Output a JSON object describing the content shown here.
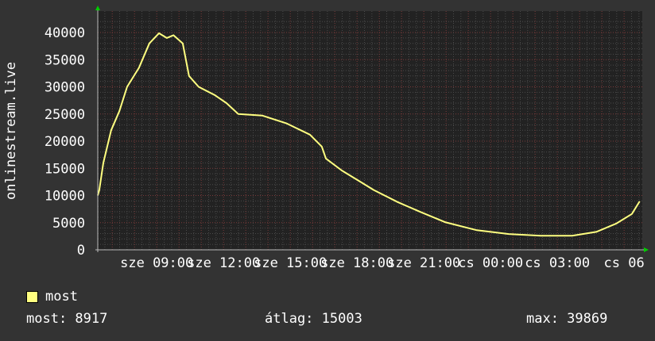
{
  "chart_data": {
    "type": "line",
    "title": "",
    "xlabel": "",
    "ylabel": "onlinestream.live",
    "ylim": [
      0,
      40000
    ],
    "yticks": [
      "0",
      "5000",
      "10000",
      "15000",
      "20000",
      "25000",
      "30000",
      "35000",
      "40000"
    ],
    "xrange": [
      "sze 06:21",
      "cs 06:49"
    ],
    "xticks": [
      {
        "label": "sze 09:00",
        "time": "sze 09:00"
      },
      {
        "label": "sze 12:00",
        "time": "sze 12:00"
      },
      {
        "label": "sze 15:00",
        "time": "sze 15:00"
      },
      {
        "label": "sze 18:00",
        "time": "sze 18:00"
      },
      {
        "label": "sze 21:00",
        "time": "sze 21:00"
      },
      {
        "label": "cs 00:00",
        "time": "cs 00:00"
      },
      {
        "label": "cs 03:00",
        "time": "cs 03:00"
      },
      {
        "label": "cs 06",
        "time": "cs 06:00"
      }
    ],
    "grid": true,
    "series": [
      {
        "name": "most",
        "color": "#ffff80",
        "points": [
          [
            "sze 06:21",
            10000
          ],
          [
            "sze 06:25",
            11000
          ],
          [
            "sze 06:36",
            16000
          ],
          [
            "sze 06:57",
            22000
          ],
          [
            "sze 07:19",
            25500
          ],
          [
            "sze 07:40",
            30000
          ],
          [
            "sze 08:12",
            33500
          ],
          [
            "sze 08:40",
            38000
          ],
          [
            "sze 09:06",
            39869
          ],
          [
            "sze 09:27",
            39000
          ],
          [
            "sze 09:45",
            39500
          ],
          [
            "sze 10:10",
            38000
          ],
          [
            "sze 10:27",
            32000
          ],
          [
            "sze 10:53",
            30000
          ],
          [
            "sze 11:36",
            28500
          ],
          [
            "sze 12:08",
            27000
          ],
          [
            "sze 12:40",
            25000
          ],
          [
            "sze 13:45",
            24700
          ],
          [
            "sze 14:49",
            23300
          ],
          [
            "sze 15:53",
            21200
          ],
          [
            "sze 16:25",
            19000
          ],
          [
            "sze 16:36",
            16800
          ],
          [
            "sze 17:19",
            14600
          ],
          [
            "sze 18:12",
            12400
          ],
          [
            "sze 18:45",
            11000
          ],
          [
            "sze 19:49",
            8800
          ],
          [
            "sze 20:53",
            6900
          ],
          [
            "sze 21:57",
            5100
          ],
          [
            "sze 23:23",
            3600
          ],
          [
            "cs 00:49",
            2900
          ],
          [
            "cs 02:15",
            2600
          ],
          [
            "cs 03:40",
            2600
          ],
          [
            "cs 04:45",
            3300
          ],
          [
            "cs 05:38",
            4800
          ],
          [
            "cs 06:21",
            6600
          ],
          [
            "cs 06:42",
            8917
          ]
        ]
      }
    ]
  },
  "legend": {
    "label": "most",
    "color": "#ffff80"
  },
  "stats": {
    "current": "most: 8917",
    "average": "átlag: 15003",
    "max": "max: 39869"
  },
  "colors": {
    "background": "#333333",
    "plot": "#222222",
    "minor_grid": "#4a4a4a",
    "major_grid": "#7a3a3a",
    "axis_arrow": "#00cc00"
  }
}
